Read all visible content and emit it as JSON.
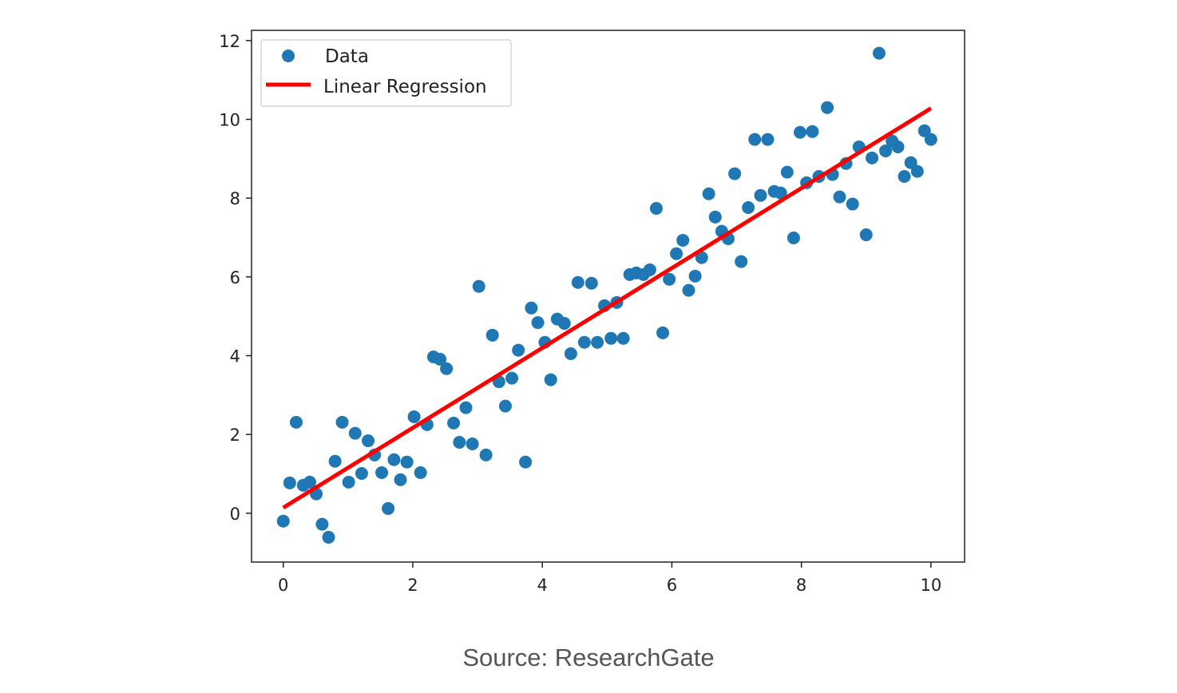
{
  "chart_data": {
    "type": "scatter",
    "title": "",
    "xlabel": "",
    "ylabel": "",
    "xlim": [
      -0.49,
      10.52
    ],
    "ylim": [
      -1.24,
      12.26
    ],
    "xticks": [
      0,
      2,
      4,
      6,
      8,
      10
    ],
    "yticks": [
      0,
      2,
      4,
      6,
      8,
      10,
      12
    ],
    "grid": false,
    "legend_position": "top-left",
    "series": [
      {
        "name": "Data",
        "kind": "scatter",
        "color": "#1f77b4",
        "x": [
          0,
          0.1,
          0.2,
          0.31,
          0.41,
          0.51,
          0.6,
          0.7,
          0.8,
          0.91,
          1.01,
          1.11,
          1.21,
          1.31,
          1.41,
          1.52,
          1.62,
          1.71,
          1.81,
          1.91,
          2.02,
          2.12,
          2.22,
          2.32,
          2.42,
          2.52,
          2.63,
          2.72,
          2.82,
          2.92,
          3.02,
          3.13,
          3.23,
          3.33,
          3.43,
          3.53,
          3.63,
          3.74,
          3.83,
          3.93,
          4.04,
          4.13,
          4.23,
          4.34,
          4.44,
          4.55,
          4.65,
          4.76,
          4.85,
          4.96,
          5.06,
          5.15,
          5.25,
          5.35,
          5.45,
          5.56,
          5.66,
          5.76,
          5.86,
          5.96,
          6.07,
          6.17,
          6.26,
          6.36,
          6.46,
          6.57,
          6.67,
          6.77,
          6.87,
          6.97,
          7.07,
          7.18,
          7.28,
          7.37,
          7.48,
          7.58,
          7.68,
          7.78,
          7.88,
          7.98,
          8.08,
          8.17,
          8.27,
          8.4,
          8.48,
          8.59,
          8.69,
          8.79,
          8.89,
          9.0,
          9.09,
          9.2,
          9.3,
          9.4,
          9.49,
          9.59,
          9.69,
          9.79,
          9.9,
          10.0
        ],
        "y": [
          -0.2,
          0.77,
          2.31,
          0.71,
          0.79,
          0.49,
          -0.28,
          -0.61,
          1.32,
          2.31,
          0.79,
          2.03,
          1.01,
          1.84,
          1.48,
          1.03,
          0.12,
          1.36,
          0.85,
          1.3,
          2.45,
          1.03,
          2.25,
          3.97,
          3.91,
          3.67,
          2.29,
          1.8,
          2.68,
          1.76,
          5.76,
          1.48,
          4.52,
          3.34,
          2.72,
          3.43,
          4.14,
          1.3,
          5.21,
          4.84,
          4.34,
          3.39,
          4.93,
          4.82,
          4.05,
          5.86,
          4.34,
          5.84,
          4.34,
          5.27,
          4.44,
          5.35,
          4.44,
          6.06,
          6.1,
          6.06,
          6.18,
          7.74,
          4.58,
          5.94,
          6.59,
          6.93,
          5.66,
          6.02,
          6.49,
          8.11,
          7.52,
          7.16,
          6.97,
          8.62,
          6.39,
          7.76,
          9.49,
          8.07,
          9.49,
          8.17,
          8.13,
          8.66,
          6.99,
          9.67,
          8.39,
          9.69,
          8.55,
          10.3,
          8.6,
          8.03,
          8.88,
          7.85,
          9.3,
          7.07,
          9.02,
          11.68,
          9.2,
          9.45,
          9.3,
          8.55,
          8.9,
          8.68,
          9.71,
          9.49
        ]
      },
      {
        "name": "Linear Regression",
        "kind": "line",
        "color": "#ff0000",
        "x": [
          0,
          10
        ],
        "y": [
          0.14,
          10.28
        ]
      }
    ]
  },
  "caption": "Source: ResearchGate"
}
